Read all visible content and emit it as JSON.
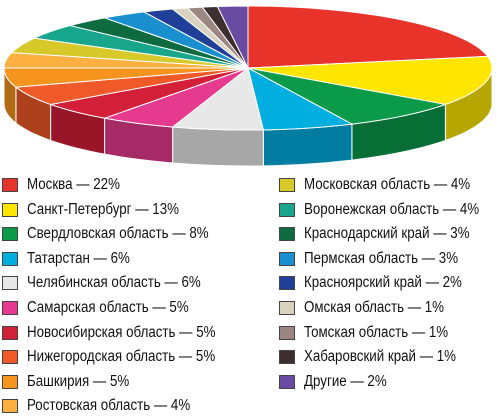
{
  "chart_data": {
    "type": "pie",
    "style": "3d",
    "slices": [
      {
        "label": "Москва — 22%",
        "value": 22,
        "color": "#e8332a"
      },
      {
        "label": "Санкт-Петербург — 13%",
        "value": 13,
        "color": "#ffe600"
      },
      {
        "label": "Свердловская область — 8%",
        "value": 8,
        "color": "#0a9a49"
      },
      {
        "label": "Татарстан — 6%",
        "value": 6,
        "color": "#00aee0"
      },
      {
        "label": "Челябинская область — 6%",
        "value": 6,
        "color": "#e8e8e8"
      },
      {
        "label": "Самарская область — 5%",
        "value": 5,
        "color": "#e63a8e"
      },
      {
        "label": "Новосибирская область — 5%",
        "value": 5,
        "color": "#d41f38"
      },
      {
        "label": "Нижегородская область — 5%",
        "value": 5,
        "color": "#f05a28"
      },
      {
        "label": "Башкирия — 5%",
        "value": 5,
        "color": "#f7941d"
      },
      {
        "label": "Ростовская область — 4%",
        "value": 4,
        "color": "#fbb040"
      },
      {
        "label": "Московская область — 4%",
        "value": 4,
        "color": "#d7c92a"
      },
      {
        "label": "Воронежская область — 4%",
        "value": 4,
        "color": "#17a58c"
      },
      {
        "label": "Краснодарский край — 3%",
        "value": 3,
        "color": "#0d6b3f"
      },
      {
        "label": "Пермская область — 3%",
        "value": 3,
        "color": "#1a8fd0"
      },
      {
        "label": "Красноярский край — 2%",
        "value": 2,
        "color": "#1f3f99"
      },
      {
        "label": "Омская область — 1%",
        "value": 1,
        "color": "#d9d2bf"
      },
      {
        "label": "Томская область — 1%",
        "value": 1,
        "color": "#9c8682"
      },
      {
        "label": "Хабаровский край — 1%",
        "value": 1,
        "color": "#3d2f2f"
      },
      {
        "label": "Другие — 2%",
        "value": 2,
        "color": "#6a4ba2"
      }
    ]
  }
}
